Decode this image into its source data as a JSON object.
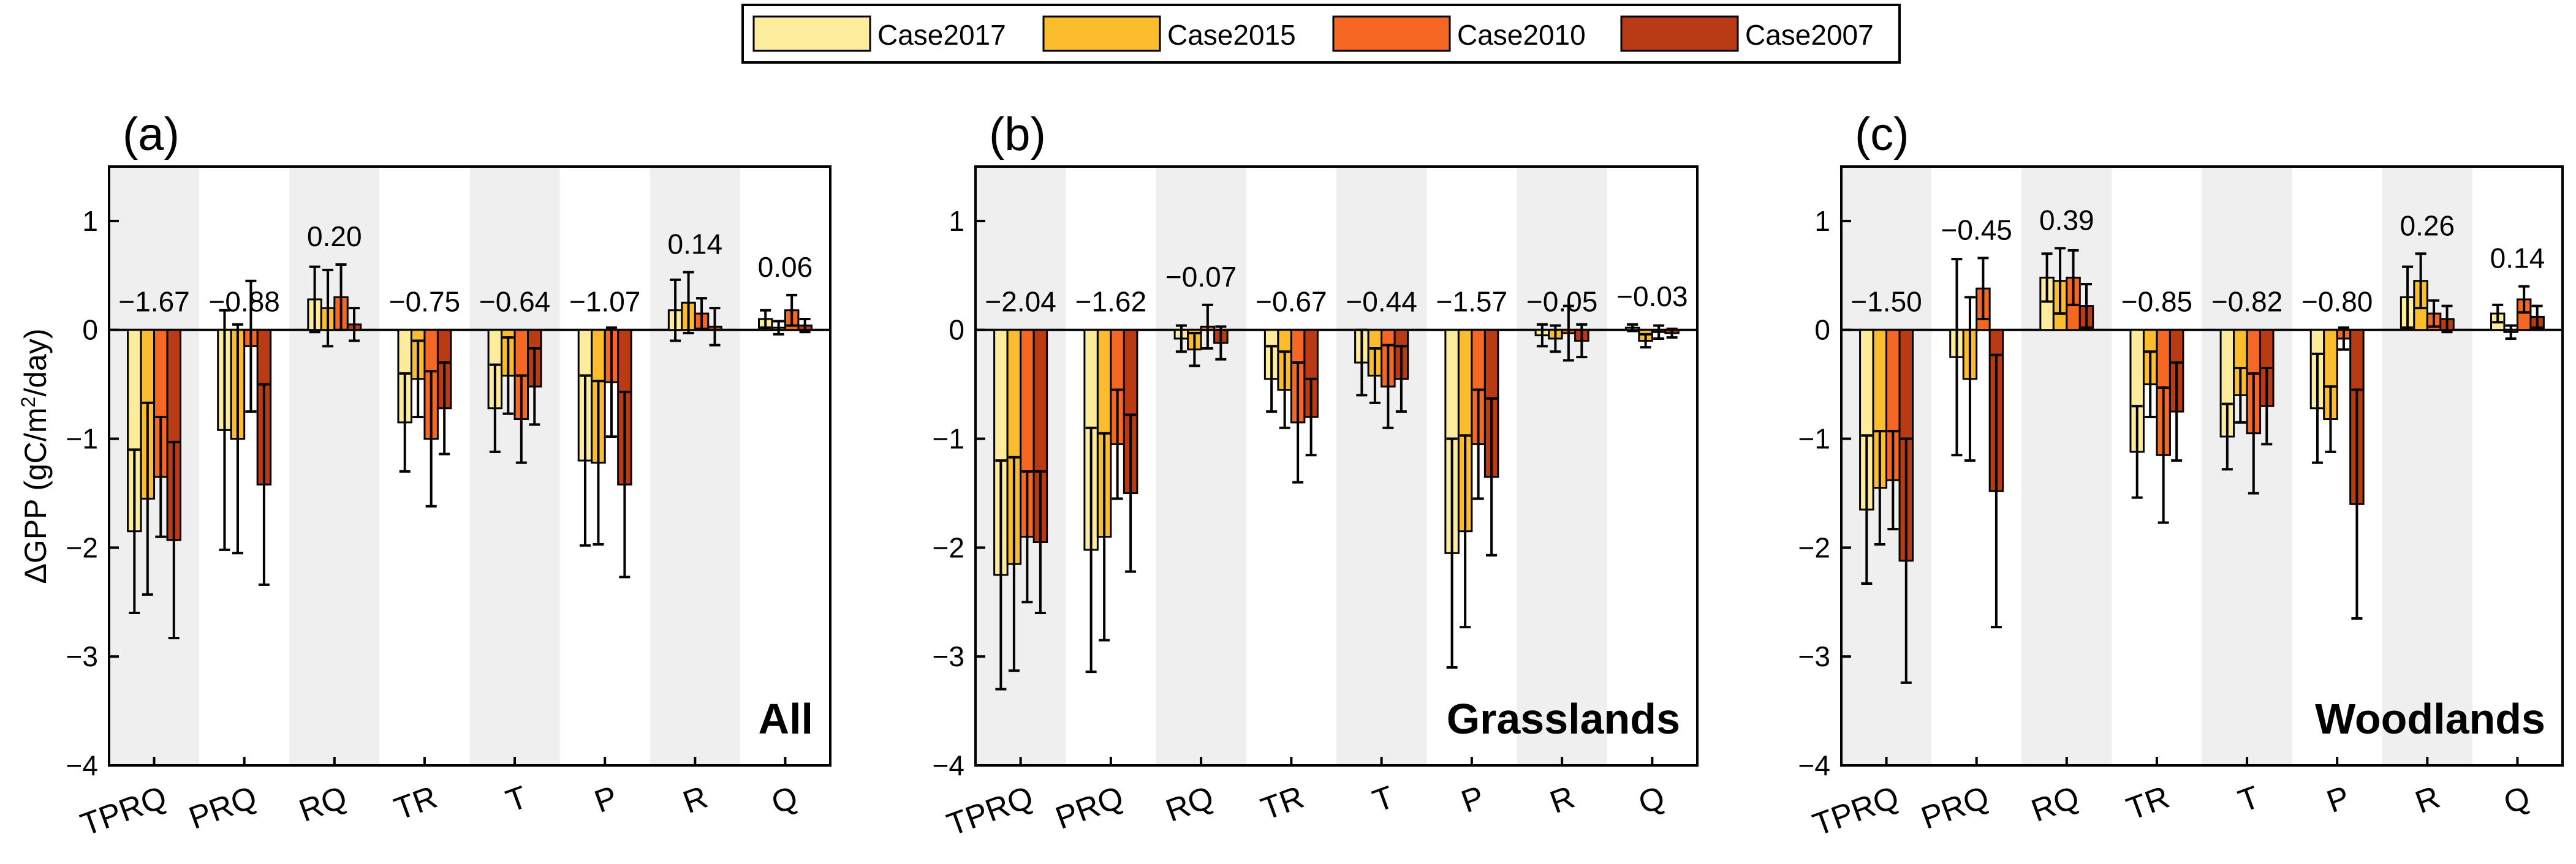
{
  "legend": {
    "entries": [
      {
        "name": "Case2017",
        "color": "#fcec9c"
      },
      {
        "name": "Case2015",
        "color": "#fbbd2e"
      },
      {
        "name": "Case2010",
        "color": "#f46824"
      },
      {
        "name": "Case2007",
        "color": "#b83b14"
      }
    ]
  },
  "ylabel": {
    "prefix": "ΔGPP (gC/m",
    "sup": "2",
    "suffix": "/day)"
  },
  "chart_data": [
    {
      "type": "bar",
      "panel_label": "(a)",
      "corner_label": "All",
      "categories": [
        "TPRQ",
        "PRQ",
        "RQ",
        "TR",
        "T",
        "P",
        "R",
        "Q"
      ],
      "ylim": [
        -4,
        1.5
      ],
      "yticks": [
        -4,
        -3,
        -2,
        -1,
        0,
        1
      ],
      "ytick_labels": [
        "−4",
        "−3",
        "−2",
        "−1",
        "0",
        "1"
      ],
      "shaded_columns": [
        0,
        2,
        4,
        6
      ],
      "annotations": [
        "−1.67",
        "−0.88",
        "0.20",
        "−0.75",
        "−0.64",
        "−1.07",
        "0.14",
        "0.06"
      ],
      "series": [
        {
          "name": "Case2017",
          "values": [
            -1.85,
            -0.92,
            0.28,
            -0.85,
            -0.72,
            -1.2,
            0.18,
            0.1
          ],
          "errors": [
            0.75,
            1.1,
            0.3,
            0.45,
            0.4,
            0.78,
            0.28,
            0.08
          ]
        },
        {
          "name": "Case2015",
          "values": [
            -1.55,
            -1.0,
            0.2,
            -0.45,
            -0.42,
            -1.22,
            0.25,
            0.02
          ],
          "errors": [
            0.88,
            1.05,
            0.35,
            0.35,
            0.35,
            0.75,
            0.28,
            0.06
          ]
        },
        {
          "name": "Case2010",
          "values": [
            -1.35,
            -0.15,
            0.3,
            -1.0,
            -0.82,
            -0.48,
            0.15,
            0.18
          ],
          "errors": [
            0.55,
            0.6,
            0.3,
            0.62,
            0.4,
            0.5,
            0.14,
            0.14
          ]
        },
        {
          "name": "Case2007",
          "values": [
            -1.93,
            -1.42,
            0.05,
            -0.72,
            -0.52,
            -1.42,
            0.03,
            0.04
          ],
          "errors": [
            0.9,
            0.92,
            0.15,
            0.42,
            0.35,
            0.85,
            0.17,
            0.06
          ]
        }
      ]
    },
    {
      "type": "bar",
      "panel_label": "(b)",
      "corner_label": "Grasslands",
      "categories": [
        "TPRQ",
        "PRQ",
        "RQ",
        "TR",
        "T",
        "P",
        "R",
        "Q"
      ],
      "ylim": [
        -4,
        1.5
      ],
      "yticks": [
        -4,
        -3,
        -2,
        -1,
        0,
        1
      ],
      "ytick_labels": [
        "−4",
        "−3",
        "−2",
        "−1",
        "0",
        "1"
      ],
      "shaded_columns": [
        0,
        2,
        4,
        6
      ],
      "annotations": [
        "−2.04",
        "−1.62",
        "−0.07",
        "−0.67",
        "−0.44",
        "−1.57",
        "−0.05",
        "−0.03"
      ],
      "series": [
        {
          "name": "Case2017",
          "values": [
            -2.25,
            -2.02,
            -0.08,
            -0.45,
            -0.3,
            -2.05,
            -0.05,
            0.02
          ],
          "errors": [
            1.05,
            1.12,
            0.12,
            0.3,
            0.3,
            1.05,
            0.1,
            0.03
          ]
        },
        {
          "name": "Case2015",
          "values": [
            -2.15,
            -1.9,
            -0.18,
            -0.55,
            -0.42,
            -1.85,
            -0.08,
            -0.1
          ],
          "errors": [
            0.98,
            0.95,
            0.15,
            0.35,
            0.25,
            0.88,
            0.12,
            0.06
          ]
        },
        {
          "name": "Case2010",
          "values": [
            -1.9,
            -1.05,
            0.03,
            -0.85,
            -0.52,
            -1.05,
            -0.03,
            -0.02
          ],
          "errors": [
            0.6,
            0.5,
            0.2,
            0.55,
            0.38,
            0.5,
            0.25,
            0.06
          ]
        },
        {
          "name": "Case2007",
          "values": [
            -1.95,
            -1.5,
            -0.12,
            -0.8,
            -0.45,
            -1.35,
            -0.1,
            -0.03
          ],
          "errors": [
            0.65,
            0.72,
            0.15,
            0.35,
            0.3,
            0.72,
            0.15,
            0.04
          ]
        }
      ]
    },
    {
      "type": "bar",
      "panel_label": "(c)",
      "corner_label": "Woodlands",
      "categories": [
        "TPRQ",
        "PRQ",
        "RQ",
        "TR",
        "T",
        "P",
        "R",
        "Q"
      ],
      "ylim": [
        -4,
        1.5
      ],
      "yticks": [
        -4,
        -3,
        -2,
        -1,
        0,
        1
      ],
      "ytick_labels": [
        "−4",
        "−3",
        "−2",
        "−1",
        "0",
        "1"
      ],
      "shaded_columns": [
        0,
        2,
        4,
        6
      ],
      "annotations": [
        "−1.50",
        "−0.45",
        "0.39",
        "−0.85",
        "−0.82",
        "−0.80",
        "0.26",
        "0.14"
      ],
      "series": [
        {
          "name": "Case2017",
          "values": [
            -1.65,
            -0.25,
            0.48,
            -1.12,
            -0.98,
            -0.72,
            0.3,
            0.15
          ],
          "errors": [
            0.68,
            0.9,
            0.22,
            0.42,
            0.3,
            0.5,
            0.28,
            0.08
          ]
        },
        {
          "name": "Case2015",
          "values": [
            -1.45,
            -0.45,
            0.45,
            -0.5,
            -0.6,
            -0.82,
            0.45,
            -0.02
          ],
          "errors": [
            0.52,
            0.75,
            0.3,
            0.3,
            0.25,
            0.3,
            0.25,
            0.06
          ]
        },
        {
          "name": "Case2010",
          "values": [
            -1.38,
            0.38,
            0.48,
            -1.15,
            -0.95,
            -0.08,
            0.15,
            0.28
          ],
          "errors": [
            0.45,
            0.28,
            0.25,
            0.62,
            0.55,
            0.1,
            0.12,
            0.12
          ]
        },
        {
          "name": "Case2007",
          "values": [
            -2.12,
            -1.48,
            0.22,
            -0.75,
            -0.7,
            -1.6,
            0.1,
            0.12
          ],
          "errors": [
            1.12,
            1.25,
            0.2,
            0.45,
            0.35,
            1.05,
            0.12,
            0.1
          ]
        }
      ]
    }
  ]
}
